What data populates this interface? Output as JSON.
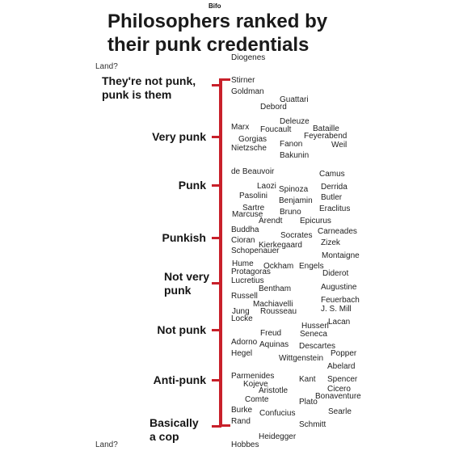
{
  "header": {
    "credit": "Bifo",
    "title_line1": "Philosophers ranked by",
    "title_line2": "their punk credentials"
  },
  "axis_top_label": "Land?",
  "axis_bottom_label": "Land?",
  "colors": {
    "axis": "#c8202a"
  },
  "categories": [
    {
      "line1": "They're not punk,",
      "line2": "punk is them"
    },
    {
      "line1": "Very punk",
      "line2": ""
    },
    {
      "line1": "Punk",
      "line2": ""
    },
    {
      "line1": "Punkish",
      "line2": ""
    },
    {
      "line1": "Not very",
      "line2": "punk"
    },
    {
      "line1": "Not punk",
      "line2": ""
    },
    {
      "line1": "Anti-punk",
      "line2": ""
    },
    {
      "line1": "Basically",
      "line2": "a cop"
    }
  ],
  "philosophers": [
    "Diogenes",
    "Stirner",
    "Goldman",
    "Guattari",
    "Debord",
    "Deleuze",
    "Marx",
    "Foucault",
    "Bataille",
    "Feyerabend",
    "Gorgias",
    "Fanon",
    "Weil",
    "Nietzsche",
    "Bakunin",
    "de Beauvoir",
    "Camus",
    "Laozi",
    "Spinoza",
    "Derrida",
    "Pasolini",
    "Benjamin",
    "Butler",
    "Sartre",
    "Bruno",
    "Eraclitus",
    "Marcuse",
    "Arendt",
    "Epicurus",
    "Buddha",
    "Socrates",
    "Carneades",
    "Cioran",
    "Kierkegaard",
    "Zizek",
    "Schopenauer",
    "Montaigne",
    "Hume",
    "Ockham",
    "Engels",
    "Protagoras",
    "Diderot",
    "Lucretius",
    "Bentham",
    "Augustine",
    "Russell",
    "Feuerbach",
    "Machiavelli",
    "Jung",
    "Rousseau",
    "J. S. Mill",
    "Locke",
    "Lacan",
    "Husserl",
    "Freud",
    "Seneca",
    "Adorno",
    "Aquinas",
    "Descartes",
    "Popper",
    "Hegel",
    "Wittgenstein",
    "Abelard",
    "Parmenides",
    "Kant",
    "Spencer",
    "Kojeve",
    "Aristotle",
    "Cicero",
    "Bonaventure",
    "Comte",
    "Plato",
    "Burke",
    "Confucius",
    "Searle",
    "Rand",
    "Schmitt",
    "Heidegger",
    "Hobbes"
  ]
}
